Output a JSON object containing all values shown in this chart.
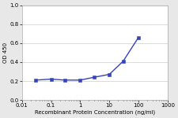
{
  "x": [
    0.03,
    0.1,
    0.3,
    1,
    3,
    10,
    30,
    100
  ],
  "y": [
    0.21,
    0.22,
    0.21,
    0.21,
    0.24,
    0.27,
    0.41,
    0.66
  ],
  "line_color": "#3344bb",
  "marker_color": "#3344bb",
  "marker": "s",
  "marker_size": 2.5,
  "line_width": 1.0,
  "xlabel": "Recombinant Protein Concentration (ng/ml)",
  "ylabel": "OD 450",
  "xlim": [
    0.01,
    1000
  ],
  "ylim": [
    0,
    1
  ],
  "yticks": [
    0,
    0.2,
    0.4,
    0.6,
    0.8,
    1
  ],
  "xtick_vals": [
    0.01,
    0.1,
    1,
    10,
    100,
    1000
  ],
  "xtick_labels": [
    "0.01",
    "0.1",
    "1",
    "10",
    "100",
    "1000"
  ],
  "background_color": "#e8e8e8",
  "plot_bg": "#ffffff",
  "xlabel_fontsize": 5,
  "ylabel_fontsize": 5,
  "tick_fontsize": 5,
  "grid_color": "#cccccc",
  "spine_color": "#aaaaaa"
}
